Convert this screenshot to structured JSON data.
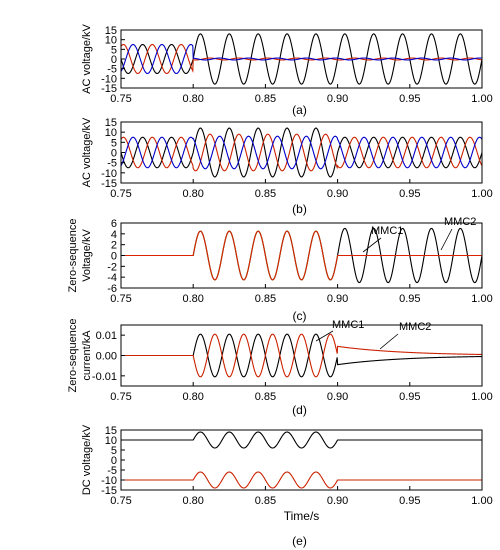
{
  "chart_data": [
    {
      "id": "a",
      "type": "line",
      "caption": "(a)",
      "ylabel": "AC voltage/kV",
      "xlim": [
        0.75,
        1.0
      ],
      "ylim": [
        -15,
        15
      ],
      "yticks": [
        -15,
        -10,
        -5,
        0,
        5,
        10,
        15
      ],
      "xticks": [
        "0.75",
        "0.80",
        "0.85",
        "0.90",
        "0.95",
        "1.00"
      ],
      "series": [
        {
          "color": "#000000",
          "segments": [
            {
              "x0": 0.75,
              "x1": 0.8,
              "amp": 7.5,
              "phase": 0
            },
            {
              "x0": 0.8,
              "x1": 1.0,
              "amp": 13,
              "phase": 0
            }
          ]
        },
        {
          "color": "#cc2200",
          "segments": [
            {
              "x0": 0.75,
              "x1": 0.8,
              "amp": 7.5,
              "phase": -120
            },
            {
              "x0": 0.8,
              "x1": 1.0,
              "amp": 0.5,
              "phase": -120
            }
          ]
        },
        {
          "color": "#0000cc",
          "segments": [
            {
              "x0": 0.75,
              "x1": 0.8,
              "amp": 7.5,
              "phase": 120
            },
            {
              "x0": 0.8,
              "x1": 1.0,
              "amp": 0.5,
              "phase": 120
            }
          ]
        }
      ]
    },
    {
      "id": "b",
      "type": "line",
      "caption": "(b)",
      "ylabel": "AC voltage/kV",
      "xlim": [
        0.75,
        1.0
      ],
      "ylim": [
        -15,
        15
      ],
      "yticks": [
        -15,
        -10,
        -5,
        0,
        5,
        10,
        15
      ],
      "xticks": [
        "0.75",
        "0.80",
        "0.85",
        "0.90",
        "0.95",
        "1.00"
      ],
      "series": [
        {
          "color": "#000000",
          "segments": [
            {
              "x0": 0.75,
              "x1": 0.8,
              "amp": 7.5,
              "phase": 0
            },
            {
              "x0": 0.8,
              "x1": 0.9,
              "amp": 12,
              "phase": 0
            },
            {
              "x0": 0.9,
              "x1": 1.0,
              "amp": 7.5,
              "phase": 0
            }
          ]
        },
        {
          "color": "#cc2200",
          "segments": [
            {
              "x0": 0.75,
              "x1": 0.8,
              "amp": 7.5,
              "phase": -120
            },
            {
              "x0": 0.8,
              "x1": 0.9,
              "amp": 9,
              "phase": -120
            },
            {
              "x0": 0.9,
              "x1": 1.0,
              "amp": 7.5,
              "phase": -120
            }
          ]
        },
        {
          "color": "#0000cc",
          "segments": [
            {
              "x0": 0.75,
              "x1": 0.8,
              "amp": 7.5,
              "phase": 120
            },
            {
              "x0": 0.8,
              "x1": 0.9,
              "amp": 8,
              "phase": 120
            },
            {
              "x0": 0.9,
              "x1": 1.0,
              "amp": 7.5,
              "phase": 120
            }
          ]
        }
      ]
    },
    {
      "id": "c",
      "type": "line",
      "caption": "(c)",
      "ylabel": [
        "Zero-sequence",
        "Voltage/kV"
      ],
      "xlim": [
        0.75,
        1.0
      ],
      "ylim": [
        -6,
        6
      ],
      "yticks": [
        -6,
        -4,
        -2,
        0,
        2,
        4,
        6
      ],
      "xticks": [
        "0.75",
        "0.80",
        "0.85",
        "0.90",
        "0.95",
        "1.00"
      ],
      "annotations": [
        "MMC1",
        "MMC2"
      ],
      "series": [
        {
          "name": "MMC1",
          "color": "#000000",
          "segments": [
            {
              "x0": 0.75,
              "x1": 0.8,
              "amp": 0,
              "phase": 0
            },
            {
              "x0": 0.8,
              "x1": 0.9,
              "amp": 4.5,
              "phase": 0
            },
            {
              "x0": 0.9,
              "x1": 1.0,
              "amp": 5,
              "phase": 0
            }
          ]
        },
        {
          "color": "#44aa22",
          "segments": [
            {
              "x0": 0.75,
              "x1": 0.8,
              "amp": 0,
              "phase": 0
            },
            {
              "x0": 0.8,
              "x1": 0.9,
              "amp": 4.5,
              "phase": 0
            },
            {
              "x0": 0.9,
              "x1": 1.0,
              "amp": 0,
              "phase": 0
            }
          ]
        },
        {
          "name": "MMC2",
          "color": "#dd2200",
          "segments": [
            {
              "x0": 0.75,
              "x1": 0.8,
              "amp": 0,
              "phase": 0
            },
            {
              "x0": 0.8,
              "x1": 0.9,
              "amp": 4.5,
              "phase": 0
            },
            {
              "x0": 0.9,
              "x1": 1.0,
              "amp": 0,
              "phase": 0
            }
          ]
        }
      ]
    },
    {
      "id": "d",
      "type": "line",
      "caption": "(d)",
      "ylabel": [
        "Zero-sequence",
        "current/kA"
      ],
      "xlim": [
        0.75,
        1.0
      ],
      "ylim": [
        -0.015,
        0.015
      ],
      "yticks": [
        -0.01,
        0.0,
        0.01
      ],
      "ytick_labels": [
        "-0.01",
        "0.00",
        "0.01"
      ],
      "xticks": [
        "0.75",
        "0.80",
        "0.85",
        "0.90",
        "0.95",
        "1.00"
      ],
      "annotations": [
        "MMC1",
        "MMC2"
      ],
      "series": [
        {
          "name": "MMC1",
          "color": "#000000",
          "segments": [
            {
              "x0": 0.75,
              "x1": 0.8,
              "amp": 0,
              "phase": 0
            },
            {
              "x0": 0.8,
              "x1": 0.9,
              "amp": 0.0105,
              "phase": 0,
              "shape": "sine",
              "decay": 1
            }
          ],
          "tail": {
            "from": 0.9,
            "start": -0.0045,
            "end": -0.0005
          }
        },
        {
          "name": "MMC2",
          "color": "#cc2200",
          "segments": [
            {
              "x0": 0.75,
              "x1": 0.8,
              "amp": 0,
              "phase": 0
            },
            {
              "x0": 0.8,
              "x1": 0.9,
              "amp": -0.0105,
              "phase": 0,
              "shape": "sine",
              "decay": 1
            }
          ],
          "tail": {
            "from": 0.9,
            "start": 0.0045,
            "end": 0.0005
          }
        }
      ]
    },
    {
      "id": "e",
      "type": "line",
      "caption": "(e)",
      "xlabel": "Time/s",
      "ylabel": "DC voltage/kV",
      "xlim": [
        0.75,
        1.0
      ],
      "ylim": [
        -15,
        15
      ],
      "yticks": [
        -15,
        -10,
        -5,
        0,
        5,
        10,
        15
      ],
      "xticks": [
        "0.75",
        "0.80",
        "0.85",
        "0.90",
        "0.95",
        "1.00"
      ],
      "series": [
        {
          "color": "#000000",
          "offset": 10,
          "segments": [
            {
              "x0": 0.75,
              "x1": 0.8,
              "amp": 0,
              "phase": 0
            },
            {
              "x0": 0.8,
              "x1": 0.9,
              "amp": 4,
              "phase": 0,
              "shape": "bump"
            },
            {
              "x0": 0.9,
              "x1": 1.0,
              "amp": 0,
              "phase": 0
            }
          ]
        },
        {
          "color": "#cc2200",
          "offset": -10,
          "segments": [
            {
              "x0": 0.75,
              "x1": 0.8,
              "amp": 0,
              "phase": 0
            },
            {
              "x0": 0.8,
              "x1": 0.9,
              "amp": 4,
              "phase": 0,
              "shape": "bump"
            },
            {
              "x0": 0.9,
              "x1": 1.0,
              "amp": 0,
              "phase": 0
            }
          ]
        }
      ]
    }
  ]
}
